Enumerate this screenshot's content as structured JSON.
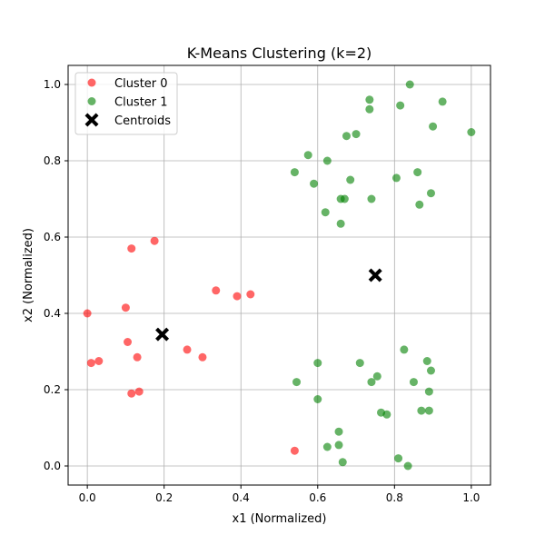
{
  "chart_data": {
    "type": "scatter",
    "title": "K-Means Clustering (k=2)",
    "xlabel": "x1 (Normalized)",
    "ylabel": "x2 (Normalized)",
    "xlim": [
      -0.05,
      1.05
    ],
    "ylim": [
      -0.05,
      1.05
    ],
    "xticks": [
      0.0,
      0.2,
      0.4,
      0.6,
      0.8,
      1.0
    ],
    "yticks": [
      0.0,
      0.2,
      0.4,
      0.6,
      0.8,
      1.0
    ],
    "xtick_labels": [
      "0.0",
      "0.2",
      "0.4",
      "0.6",
      "0.8",
      "1.0"
    ],
    "ytick_labels": [
      "0.0",
      "0.2",
      "0.4",
      "0.6",
      "0.8",
      "1.0"
    ],
    "grid": true,
    "legend_position": "top-left",
    "series": [
      {
        "name": "Cluster 0",
        "color": "#ff0000",
        "marker": "circle",
        "points": [
          [
            0.0,
            0.4
          ],
          [
            0.01,
            0.27
          ],
          [
            0.03,
            0.275
          ],
          [
            0.1,
            0.415
          ],
          [
            0.105,
            0.325
          ],
          [
            0.115,
            0.57
          ],
          [
            0.115,
            0.19
          ],
          [
            0.13,
            0.285
          ],
          [
            0.135,
            0.195
          ],
          [
            0.175,
            0.59
          ],
          [
            0.26,
            0.305
          ],
          [
            0.3,
            0.285
          ],
          [
            0.335,
            0.46
          ],
          [
            0.39,
            0.445
          ],
          [
            0.425,
            0.45
          ],
          [
            0.54,
            0.04
          ]
        ]
      },
      {
        "name": "Cluster 1",
        "color": "#008000",
        "marker": "circle",
        "points": [
          [
            0.54,
            0.77
          ],
          [
            0.545,
            0.22
          ],
          [
            0.575,
            0.815
          ],
          [
            0.59,
            0.74
          ],
          [
            0.6,
            0.27
          ],
          [
            0.6,
            0.175
          ],
          [
            0.62,
            0.665
          ],
          [
            0.625,
            0.05
          ],
          [
            0.625,
            0.8
          ],
          [
            0.655,
            0.09
          ],
          [
            0.655,
            0.055
          ],
          [
            0.66,
            0.635
          ],
          [
            0.66,
            0.7
          ],
          [
            0.665,
            0.01
          ],
          [
            0.67,
            0.7
          ],
          [
            0.675,
            0.865
          ],
          [
            0.685,
            0.75
          ],
          [
            0.7,
            0.87
          ],
          [
            0.71,
            0.27
          ],
          [
            0.735,
            0.96
          ],
          [
            0.735,
            0.935
          ],
          [
            0.74,
            0.7
          ],
          [
            0.74,
            0.22
          ],
          [
            0.755,
            0.235
          ],
          [
            0.765,
            0.14
          ],
          [
            0.78,
            0.135
          ],
          [
            0.805,
            0.755
          ],
          [
            0.81,
            0.02
          ],
          [
            0.815,
            0.945
          ],
          [
            0.825,
            0.305
          ],
          [
            0.835,
            0.0
          ],
          [
            0.84,
            1.0
          ],
          [
            0.85,
            0.22
          ],
          [
            0.86,
            0.77
          ],
          [
            0.865,
            0.685
          ],
          [
            0.87,
            0.145
          ],
          [
            0.885,
            0.275
          ],
          [
            0.89,
            0.145
          ],
          [
            0.89,
            0.195
          ],
          [
            0.895,
            0.715
          ],
          [
            0.895,
            0.25
          ],
          [
            0.9,
            0.89
          ],
          [
            0.925,
            0.955
          ],
          [
            1.0,
            0.875
          ]
        ]
      },
      {
        "name": "Centroids",
        "color": "#000000",
        "marker": "X",
        "points": [
          [
            0.195,
            0.345
          ],
          [
            0.75,
            0.5
          ]
        ]
      }
    ]
  }
}
